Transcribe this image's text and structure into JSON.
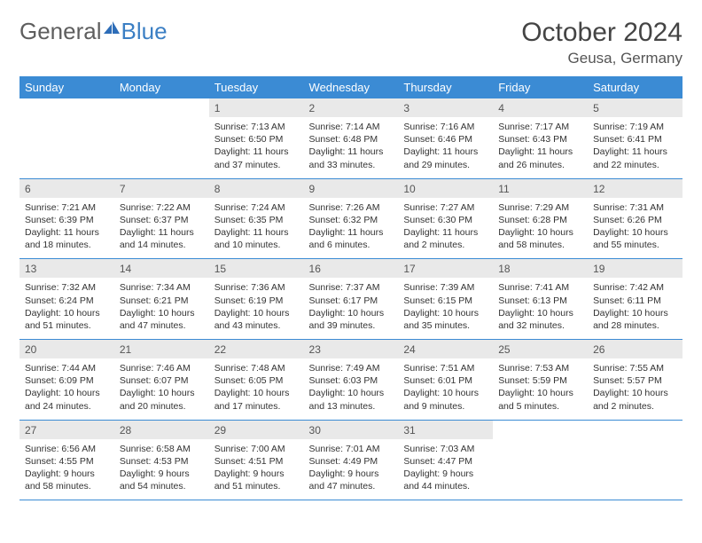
{
  "brand": {
    "part1": "General",
    "part2": "Blue"
  },
  "title": "October 2024",
  "location": "Geusa, Germany",
  "colors": {
    "header_bg": "#3b8bd4",
    "header_text": "#ffffff",
    "daynum_bg": "#e9e9e9",
    "border": "#3b8bd4",
    "body_text": "#333333",
    "title_text": "#444444"
  },
  "fonts": {
    "day_header_pt": 13,
    "title_pt": 30,
    "location_pt": 17,
    "dayinfo_pt": 10.5
  },
  "day_headers": [
    "Sunday",
    "Monday",
    "Tuesday",
    "Wednesday",
    "Thursday",
    "Friday",
    "Saturday"
  ],
  "weeks": [
    [
      null,
      null,
      {
        "n": "1",
        "sr": "Sunrise: 7:13 AM",
        "ss": "Sunset: 6:50 PM",
        "dl": "Daylight: 11 hours and 37 minutes."
      },
      {
        "n": "2",
        "sr": "Sunrise: 7:14 AM",
        "ss": "Sunset: 6:48 PM",
        "dl": "Daylight: 11 hours and 33 minutes."
      },
      {
        "n": "3",
        "sr": "Sunrise: 7:16 AM",
        "ss": "Sunset: 6:46 PM",
        "dl": "Daylight: 11 hours and 29 minutes."
      },
      {
        "n": "4",
        "sr": "Sunrise: 7:17 AM",
        "ss": "Sunset: 6:43 PM",
        "dl": "Daylight: 11 hours and 26 minutes."
      },
      {
        "n": "5",
        "sr": "Sunrise: 7:19 AM",
        "ss": "Sunset: 6:41 PM",
        "dl": "Daylight: 11 hours and 22 minutes."
      }
    ],
    [
      {
        "n": "6",
        "sr": "Sunrise: 7:21 AM",
        "ss": "Sunset: 6:39 PM",
        "dl": "Daylight: 11 hours and 18 minutes."
      },
      {
        "n": "7",
        "sr": "Sunrise: 7:22 AM",
        "ss": "Sunset: 6:37 PM",
        "dl": "Daylight: 11 hours and 14 minutes."
      },
      {
        "n": "8",
        "sr": "Sunrise: 7:24 AM",
        "ss": "Sunset: 6:35 PM",
        "dl": "Daylight: 11 hours and 10 minutes."
      },
      {
        "n": "9",
        "sr": "Sunrise: 7:26 AM",
        "ss": "Sunset: 6:32 PM",
        "dl": "Daylight: 11 hours and 6 minutes."
      },
      {
        "n": "10",
        "sr": "Sunrise: 7:27 AM",
        "ss": "Sunset: 6:30 PM",
        "dl": "Daylight: 11 hours and 2 minutes."
      },
      {
        "n": "11",
        "sr": "Sunrise: 7:29 AM",
        "ss": "Sunset: 6:28 PM",
        "dl": "Daylight: 10 hours and 58 minutes."
      },
      {
        "n": "12",
        "sr": "Sunrise: 7:31 AM",
        "ss": "Sunset: 6:26 PM",
        "dl": "Daylight: 10 hours and 55 minutes."
      }
    ],
    [
      {
        "n": "13",
        "sr": "Sunrise: 7:32 AM",
        "ss": "Sunset: 6:24 PM",
        "dl": "Daylight: 10 hours and 51 minutes."
      },
      {
        "n": "14",
        "sr": "Sunrise: 7:34 AM",
        "ss": "Sunset: 6:21 PM",
        "dl": "Daylight: 10 hours and 47 minutes."
      },
      {
        "n": "15",
        "sr": "Sunrise: 7:36 AM",
        "ss": "Sunset: 6:19 PM",
        "dl": "Daylight: 10 hours and 43 minutes."
      },
      {
        "n": "16",
        "sr": "Sunrise: 7:37 AM",
        "ss": "Sunset: 6:17 PM",
        "dl": "Daylight: 10 hours and 39 minutes."
      },
      {
        "n": "17",
        "sr": "Sunrise: 7:39 AM",
        "ss": "Sunset: 6:15 PM",
        "dl": "Daylight: 10 hours and 35 minutes."
      },
      {
        "n": "18",
        "sr": "Sunrise: 7:41 AM",
        "ss": "Sunset: 6:13 PM",
        "dl": "Daylight: 10 hours and 32 minutes."
      },
      {
        "n": "19",
        "sr": "Sunrise: 7:42 AM",
        "ss": "Sunset: 6:11 PM",
        "dl": "Daylight: 10 hours and 28 minutes."
      }
    ],
    [
      {
        "n": "20",
        "sr": "Sunrise: 7:44 AM",
        "ss": "Sunset: 6:09 PM",
        "dl": "Daylight: 10 hours and 24 minutes."
      },
      {
        "n": "21",
        "sr": "Sunrise: 7:46 AM",
        "ss": "Sunset: 6:07 PM",
        "dl": "Daylight: 10 hours and 20 minutes."
      },
      {
        "n": "22",
        "sr": "Sunrise: 7:48 AM",
        "ss": "Sunset: 6:05 PM",
        "dl": "Daylight: 10 hours and 17 minutes."
      },
      {
        "n": "23",
        "sr": "Sunrise: 7:49 AM",
        "ss": "Sunset: 6:03 PM",
        "dl": "Daylight: 10 hours and 13 minutes."
      },
      {
        "n": "24",
        "sr": "Sunrise: 7:51 AM",
        "ss": "Sunset: 6:01 PM",
        "dl": "Daylight: 10 hours and 9 minutes."
      },
      {
        "n": "25",
        "sr": "Sunrise: 7:53 AM",
        "ss": "Sunset: 5:59 PM",
        "dl": "Daylight: 10 hours and 5 minutes."
      },
      {
        "n": "26",
        "sr": "Sunrise: 7:55 AM",
        "ss": "Sunset: 5:57 PM",
        "dl": "Daylight: 10 hours and 2 minutes."
      }
    ],
    [
      {
        "n": "27",
        "sr": "Sunrise: 6:56 AM",
        "ss": "Sunset: 4:55 PM",
        "dl": "Daylight: 9 hours and 58 minutes."
      },
      {
        "n": "28",
        "sr": "Sunrise: 6:58 AM",
        "ss": "Sunset: 4:53 PM",
        "dl": "Daylight: 9 hours and 54 minutes."
      },
      {
        "n": "29",
        "sr": "Sunrise: 7:00 AM",
        "ss": "Sunset: 4:51 PM",
        "dl": "Daylight: 9 hours and 51 minutes."
      },
      {
        "n": "30",
        "sr": "Sunrise: 7:01 AM",
        "ss": "Sunset: 4:49 PM",
        "dl": "Daylight: 9 hours and 47 minutes."
      },
      {
        "n": "31",
        "sr": "Sunrise: 7:03 AM",
        "ss": "Sunset: 4:47 PM",
        "dl": "Daylight: 9 hours and 44 minutes."
      },
      null,
      null
    ]
  ]
}
